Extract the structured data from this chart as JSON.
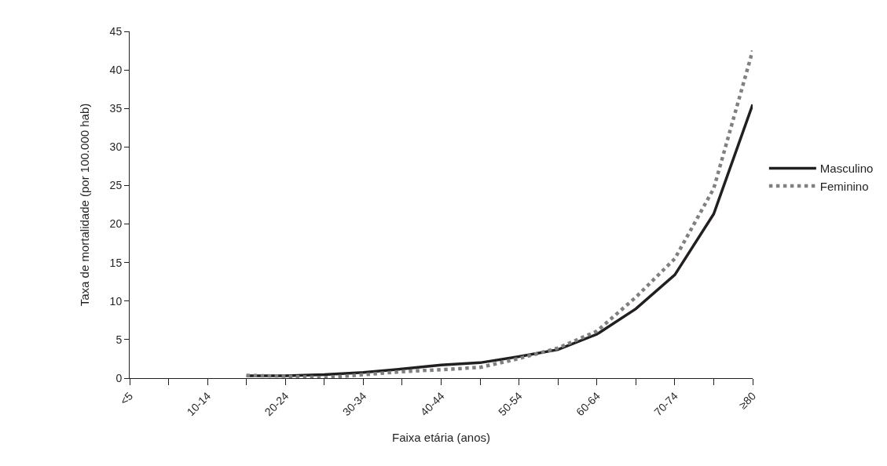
{
  "chart_data": {
    "type": "line",
    "xlabel": "Faixa etária (anos)",
    "ylabel": "Taxa de mortalidade (por 100.000 hab)",
    "categories": [
      "<5",
      null,
      "10-14",
      null,
      "20-24",
      null,
      "30-34",
      null,
      "40-44",
      null,
      "50-54",
      null,
      "60-64",
      null,
      "70-74",
      null,
      "≥80"
    ],
    "series": [
      {
        "name": "Masculino",
        "color": "#231f20",
        "line_style": "solid",
        "values": [
          null,
          null,
          null,
          0.3,
          0.3,
          0.45,
          0.75,
          1.2,
          1.7,
          2.0,
          2.8,
          3.7,
          5.7,
          9.0,
          13.4,
          21.3,
          35.5
        ]
      },
      {
        "name": "Feminino",
        "color": "#808080",
        "line_style": "dotted",
        "values": [
          null,
          null,
          null,
          0.35,
          0.25,
          0.05,
          0.45,
          0.85,
          1.1,
          1.4,
          2.55,
          3.9,
          6.1,
          10.5,
          15.5,
          24.6,
          42.5
        ]
      }
    ],
    "ylim": [
      0,
      45
    ],
    "yticks": [
      0,
      5,
      10,
      15,
      20,
      25,
      30,
      35,
      40,
      45
    ],
    "grid": false,
    "legend": "right",
    "marker": "none"
  }
}
